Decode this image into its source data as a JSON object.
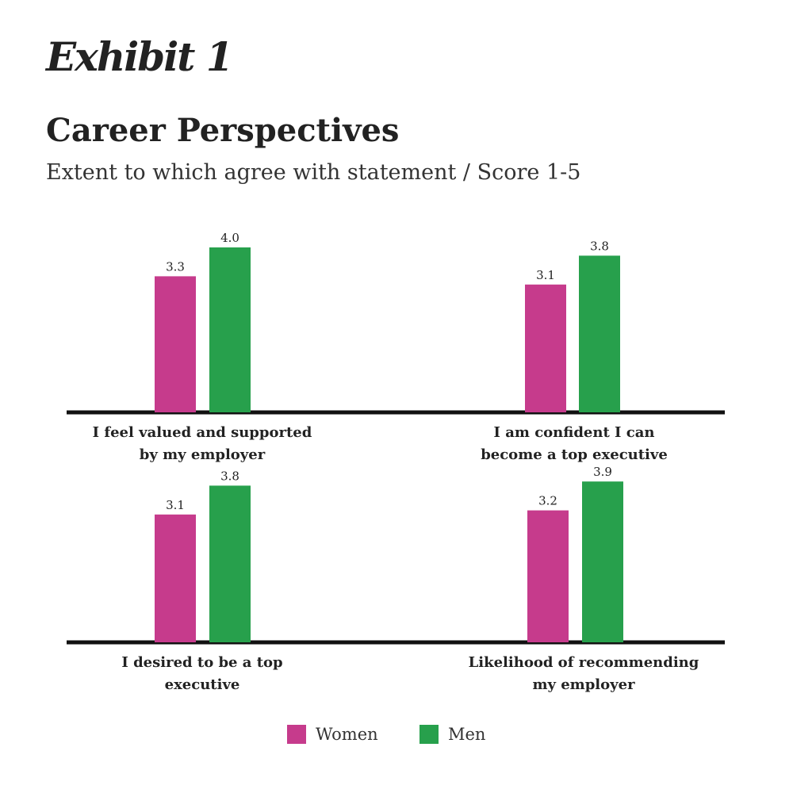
{
  "header": {
    "exhibit": "Exhibit 1",
    "title": "Career Perspectives",
    "subtitle": "Extent to which agree with statement / Score 1-5"
  },
  "colors": {
    "women": "#c63b8c",
    "men": "#27a04c",
    "axis": "#111111"
  },
  "legend": [
    {
      "name": "Women",
      "color": "#c63b8c"
    },
    {
      "name": "Men",
      "color": "#27a04c"
    }
  ],
  "chart_data": [
    {
      "type": "bar",
      "categories": [
        "I feel valued and supported by my employer"
      ],
      "label_lines": [
        "I feel valued and supported",
        "by my employer"
      ],
      "series": [
        {
          "name": "Women",
          "values": [
            3.3
          ]
        },
        {
          "name": "Men",
          "values": [
            4.0
          ]
        }
      ],
      "ylim": [
        0,
        5
      ]
    },
    {
      "type": "bar",
      "categories": [
        "I am confident I can become a top executive"
      ],
      "label_lines": [
        "I am confident I can",
        "become a top executive"
      ],
      "series": [
        {
          "name": "Women",
          "values": [
            3.1
          ]
        },
        {
          "name": "Men",
          "values": [
            3.8
          ]
        }
      ],
      "ylim": [
        0,
        5
      ]
    },
    {
      "type": "bar",
      "categories": [
        "I desired to be a top executive"
      ],
      "label_lines": [
        "I desired to be a top",
        "executive"
      ],
      "series": [
        {
          "name": "Women",
          "values": [
            3.1
          ]
        },
        {
          "name": "Men",
          "values": [
            3.8
          ]
        }
      ],
      "ylim": [
        0,
        5
      ]
    },
    {
      "type": "bar",
      "categories": [
        "Likelihood of recommending my employer"
      ],
      "label_lines": [
        "Likelihood of recommending",
        "my employer"
      ],
      "series": [
        {
          "name": "Women",
          "values": [
            3.2
          ]
        },
        {
          "name": "Men",
          "values": [
            3.9
          ]
        }
      ],
      "ylim": [
        0,
        5
      ]
    }
  ]
}
